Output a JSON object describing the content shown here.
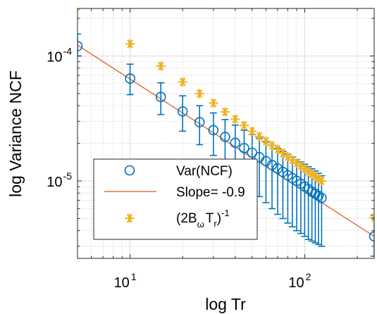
{
  "chart_data": {
    "type": "scatter",
    "xlabel": "log Tr",
    "ylabel": "log Variance NCF",
    "xscale": "log",
    "yscale": "log",
    "xlim": [
      5,
      250
    ],
    "ylim": [
      2.4e-06,
      0.00024
    ],
    "grid": true,
    "minor_grid": true,
    "x_ticks": [
      {
        "value": 10,
        "base": "10",
        "exp": "1"
      },
      {
        "value": 100,
        "base": "10",
        "exp": "2"
      }
    ],
    "y_ticks": [
      {
        "value": 1e-05,
        "base": "10",
        "exp": "-5"
      },
      {
        "value": 0.0001,
        "base": "10",
        "exp": "-4"
      }
    ],
    "legend": {
      "position": "bottom-left",
      "entries": [
        {
          "key": "var",
          "label": "Var(NCF)"
        },
        {
          "key": "slope",
          "label": "Slope= -0.9"
        },
        {
          "key": "theory",
          "label_parts": [
            "(2B",
            "ω",
            "T",
            "r",
            ")",
            "-1"
          ]
        }
      ]
    },
    "colors": {
      "var": "#0072BD",
      "slope": "#D95319",
      "theory": "#EDB120"
    },
    "x": [
      5,
      10,
      15,
      20,
      25,
      30,
      35,
      40,
      45,
      50,
      55,
      60,
      65,
      70,
      75,
      80,
      85,
      90,
      95,
      100,
      105,
      110,
      115,
      120,
      125,
      250
    ],
    "series": [
      {
        "key": "var",
        "name": "Var(NCF)",
        "marker": "circle",
        "y": [
          0.00012,
          6.6e-05,
          4.7e-05,
          3.6e-05,
          2.95e-05,
          2.55e-05,
          2.25e-05,
          2.02e-05,
          1.83e-05,
          1.68e-05,
          1.55e-05,
          1.44e-05,
          1.34e-05,
          1.26e-05,
          1.18e-05,
          1.11e-05,
          1.05e-05,
          1e-05,
          9.5e-06,
          9e-06,
          8.6e-06,
          8.2e-06,
          7.9e-06,
          7.6e-06,
          7.3e-06,
          3.6e-06
        ],
        "err_upper": [
          0.00015,
          8.6e-05,
          6.1e-05,
          4.8e-05,
          4e-05,
          3.5e-05,
          3.1e-05,
          2.8e-05,
          2.55e-05,
          2.35e-05,
          2.2e-05,
          2.05e-05,
          1.93e-05,
          1.82e-05,
          1.72e-05,
          1.63e-05,
          1.55e-05,
          1.48e-05,
          1.42e-05,
          1.36e-05,
          1.3e-05,
          1.25e-05,
          1.2e-05,
          1.15e-05,
          1.1e-05,
          5.3e-06
        ],
        "err_lower": [
          0.0001,
          4.9e-05,
          3.4e-05,
          2.5e-05,
          1.95e-05,
          1.6e-05,
          1.35e-05,
          1.15e-05,
          9.8e-06,
          8.5e-06,
          7.5e-06,
          6.7e-06,
          6e-06,
          5.4e-06,
          5e-06,
          4.6e-06,
          4.3e-06,
          4e-06,
          3.8e-06,
          3.6e-06,
          3.4e-06,
          3.3e-06,
          3.2e-06,
          3.1e-06,
          3e-06,
          2.5e-06
        ]
      },
      {
        "key": "slope",
        "name": "Slope= -0.9",
        "marker": "line",
        "x": [
          5,
          250
        ],
        "y": [
          0.000122,
          3.6e-06
        ]
      },
      {
        "key": "theory",
        "name": "(2BωTr)^-1",
        "marker": "asterisk",
        "y": [
          0.00025,
          0.000125,
          8.3e-05,
          6.2e-05,
          5e-05,
          4.2e-05,
          3.57e-05,
          3.12e-05,
          2.78e-05,
          2.5e-05,
          2.27e-05,
          2.08e-05,
          1.92e-05,
          1.79e-05,
          1.67e-05,
          1.56e-05,
          1.47e-05,
          1.39e-05,
          1.32e-05,
          1.25e-05,
          1.19e-05,
          1.14e-05,
          1.09e-05,
          1.04e-05,
          1e-05,
          5.1e-06
        ]
      }
    ]
  }
}
